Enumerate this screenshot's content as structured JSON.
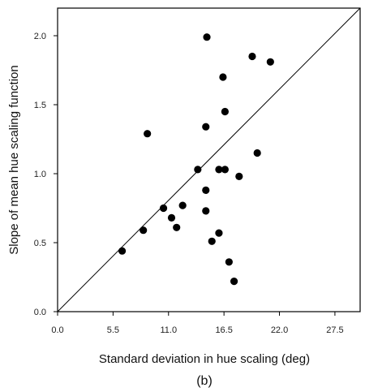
{
  "chart_data": {
    "type": "scatter",
    "title": "",
    "xlabel": "Standard deviation in hue scaling (deg)",
    "ylabel": "Slope of mean hue scaling function",
    "panel_label": "(b)",
    "xlim": [
      0,
      30
    ],
    "ylim": [
      0,
      2.2
    ],
    "xticks": [
      0,
      5.5,
      11,
      16.5,
      22,
      27.5
    ],
    "xtick_labels": [
      "0.0",
      "5.5",
      "11.0",
      "16.5",
      "22.0",
      "27.5"
    ],
    "yticks": [
      0,
      0.5,
      1.0,
      1.5,
      2.0
    ],
    "ytick_labels": [
      "0.0",
      "0.5",
      "1.0",
      "1.5",
      "2.0"
    ],
    "grid": false,
    "legend": "none",
    "reference_line": {
      "from": [
        0,
        0
      ],
      "to": [
        30,
        2.2
      ],
      "label": ""
    },
    "series": [
      {
        "x": [
          6.4,
          8.5,
          8.9,
          10.5,
          11.3,
          11.8,
          12.4,
          13.9,
          14.7,
          14.7,
          14.7,
          14.8,
          15.3,
          16.0,
          16.0,
          16.4,
          16.6,
          16.6,
          17.0,
          17.5,
          18.0,
          19.3,
          19.8,
          21.1
        ],
        "y": [
          0.44,
          0.59,
          1.29,
          0.75,
          0.68,
          0.61,
          0.77,
          1.03,
          0.88,
          0.73,
          1.34,
          1.99,
          0.51,
          0.57,
          1.03,
          1.7,
          1.03,
          1.45,
          0.36,
          0.22,
          0.98,
          1.85,
          1.15,
          1.81
        ]
      }
    ],
    "colors": {
      "marker": "#000000",
      "axes": "#000000",
      "background": "#ffffff"
    }
  }
}
